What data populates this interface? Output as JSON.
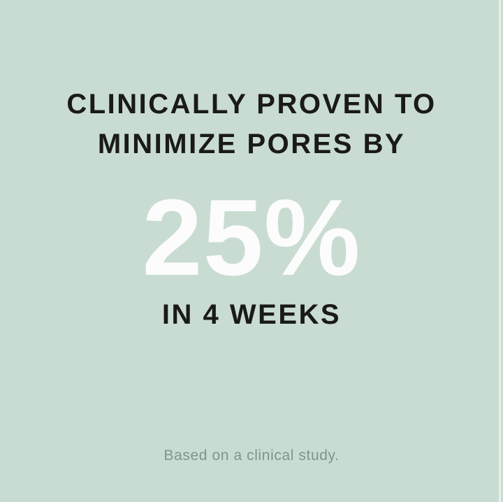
{
  "card": {
    "background_color": "#c9dcd2",
    "headline": {
      "line1": "CLINICALLY PROVEN TO",
      "line2": "MINIMIZE PORES BY",
      "color": "#1a1a19"
    },
    "stat": {
      "value": "25%",
      "color": "#fbfcfb"
    },
    "duration": {
      "text": "IN 4 WEEKS",
      "color": "#1a1a19"
    },
    "disclaimer": {
      "text": "Based on a clinical study.",
      "color": "#7e958b"
    }
  }
}
